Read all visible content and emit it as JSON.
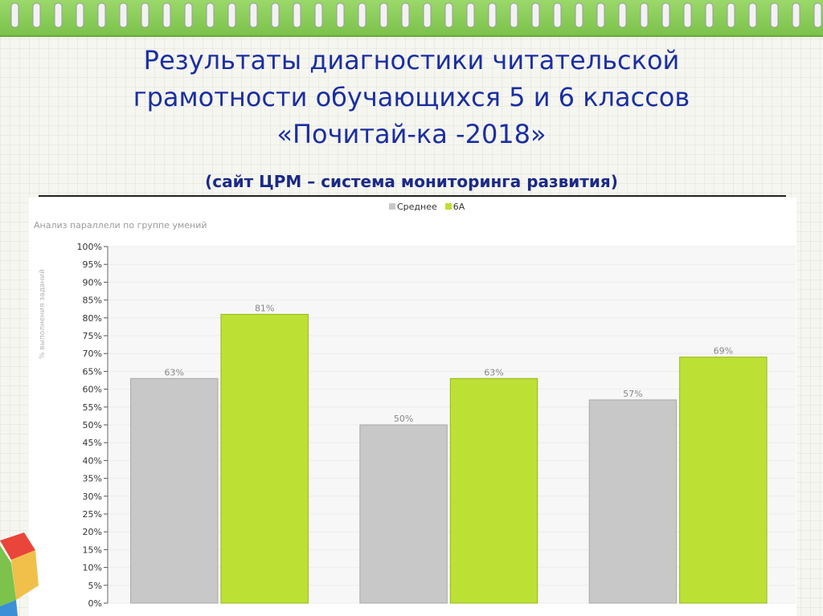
{
  "slide": {
    "title_lines": [
      "Результаты диагностики читательской",
      "грамотности обучающихся 5 и 6 классов",
      "«Почитай-ка -2018»"
    ],
    "subtitle": "(сайт ЦРМ – система мониторинга развития)"
  },
  "colors": {
    "title": "#1b2fa0",
    "band": "#8ccc58",
    "series_avg": "#c8c8c8",
    "series_6a": "#bde034"
  },
  "chart_data": {
    "type": "bar",
    "title": "Анализ параллели по группе умений",
    "ylabel": "% выполнения заданий",
    "xlabel": "",
    "categories": [
      "",
      "",
      ""
    ],
    "ylim": [
      0,
      100
    ],
    "yticks": [
      "0%",
      "5%",
      "10%",
      "15%",
      "20%",
      "25%",
      "30%",
      "35%",
      "40%",
      "45%",
      "50%",
      "55%",
      "60%",
      "65%",
      "70%",
      "75%",
      "80%",
      "85%",
      "90%",
      "95%",
      "100%"
    ],
    "series": [
      {
        "name": "Среднее",
        "color": "#c8c8c8",
        "values": [
          63,
          50,
          57
        ],
        "labels": [
          "63%",
          "50%",
          "57%"
        ]
      },
      {
        "name": "6А",
        "color": "#bde034",
        "values": [
          81,
          63,
          69
        ],
        "labels": [
          "81%",
          "63%",
          "69%"
        ]
      }
    ],
    "legend": "top-center",
    "grid": true
  }
}
